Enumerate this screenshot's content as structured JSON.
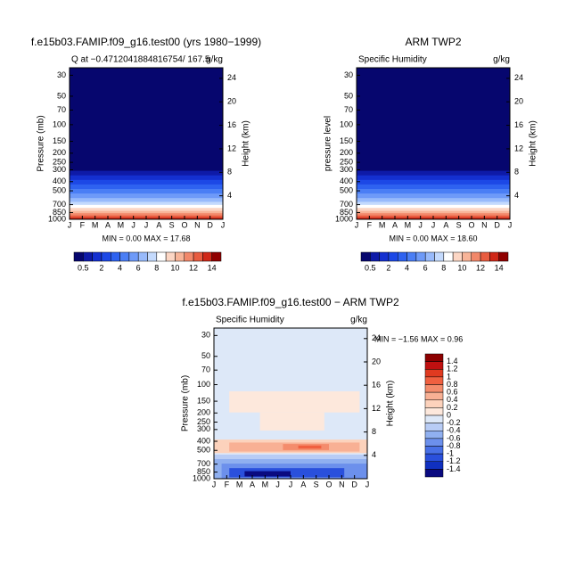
{
  "chart_data": [
    {
      "type": "contour",
      "title": "f.e15b03.FAMIP.f09_g16.test00 (yrs 1980−1999)",
      "subtitle_left": "Q at −0.4712041884816754/ 167.5",
      "subtitle_right": "g/kg",
      "ylabel": "Pressure (mb)",
      "y2label": "Height (km)",
      "categories": [
        "J",
        "F",
        "M",
        "A",
        "M",
        "J",
        "J",
        "A",
        "S",
        "O",
        "N",
        "D",
        "J"
      ],
      "y_log": true,
      "ylim": [
        1000,
        25
      ],
      "yticks": [
        30,
        50,
        70,
        100,
        150,
        200,
        250,
        300,
        400,
        500,
        700,
        850,
        1000
      ],
      "y2lim": [
        0,
        25.8
      ],
      "y2ticks": [
        4,
        8,
        12,
        16,
        20,
        24
      ],
      "stats": "MIN =   0.00  MAX =   17.68",
      "colorbar": {
        "orientation": "horizontal",
        "labels": [
          0.5,
          2,
          4,
          6,
          8,
          10,
          12,
          14
        ],
        "colors": [
          "#06066e",
          "#0e1aa8",
          "#1430d0",
          "#1c48e6",
          "#2e62f0",
          "#4a7ef5",
          "#6e9af8",
          "#98bafb",
          "#c4dafd",
          "#ffffff",
          "#fcd6c4",
          "#f8b498",
          "#f2886a",
          "#e85c40",
          "#d02818",
          "#900000"
        ]
      }
    },
    {
      "type": "contour",
      "title": "ARM TWP2",
      "subtitle_left": "Specific Humidity",
      "subtitle_right": "g/kg",
      "ylabel": "pressure level",
      "y2label": "Height (km)",
      "categories": [
        "J",
        "F",
        "M",
        "A",
        "M",
        "J",
        "J",
        "A",
        "S",
        "O",
        "N",
        "D",
        "J"
      ],
      "y_log": true,
      "ylim": [
        1000,
        25
      ],
      "yticks": [
        30,
        50,
        70,
        100,
        150,
        200,
        250,
        300,
        400,
        500,
        700,
        850,
        1000
      ],
      "y2lim": [
        0,
        25.8
      ],
      "y2ticks": [
        4,
        8,
        12,
        16,
        20,
        24
      ],
      "stats": "MIN =   0.00  MAX =   18.60",
      "colorbar": {
        "orientation": "horizontal",
        "labels": [
          0.5,
          2,
          4,
          6,
          8,
          10,
          12,
          14
        ],
        "colors": [
          "#06066e",
          "#0e1aa8",
          "#1430d0",
          "#1c48e6",
          "#2e62f0",
          "#4a7ef5",
          "#6e9af8",
          "#98bafb",
          "#c4dafd",
          "#ffffff",
          "#fcd6c4",
          "#f8b498",
          "#f2886a",
          "#e85c40",
          "#d02818",
          "#900000"
        ]
      }
    },
    {
      "type": "contour",
      "title": "f.e15b03.FAMIP.f09_g16.test00 − ARM TWP2",
      "subtitle_left": "Specific Humidity",
      "subtitle_right": "g/kg",
      "ylabel": "Pressure (mb)",
      "y2label": "Height (km)",
      "categories": [
        "J",
        "F",
        "M",
        "A",
        "M",
        "J",
        "J",
        "A",
        "S",
        "O",
        "N",
        "D",
        "J"
      ],
      "y_log": true,
      "ylim": [
        1000,
        25
      ],
      "yticks": [
        30,
        50,
        70,
        100,
        150,
        200,
        250,
        300,
        400,
        500,
        700,
        850,
        1000
      ],
      "y2lim": [
        0,
        25.8
      ],
      "y2ticks": [
        4,
        8,
        12,
        16,
        20,
        24
      ],
      "stats": "MIN =  −1.56  MAX =    0.96",
      "colorbar": {
        "orientation": "vertical",
        "labels": [
          1.4,
          1.2,
          1,
          0.8,
          0.6,
          0.4,
          0.2,
          0,
          -0.2,
          -0.4,
          -0.6,
          -0.8,
          -1,
          -1.2,
          -1.4
        ],
        "colors": [
          "#8c0000",
          "#c01010",
          "#e03a20",
          "#f06040",
          "#f48c6c",
          "#f8b094",
          "#fcd2bc",
          "#fde8dc",
          "#dde8f8",
          "#b8ccf5",
          "#90b0f0",
          "#6c90ec",
          "#4870e6",
          "#2a50dc",
          "#1030c0",
          "#0a0a80"
        ]
      }
    }
  ]
}
